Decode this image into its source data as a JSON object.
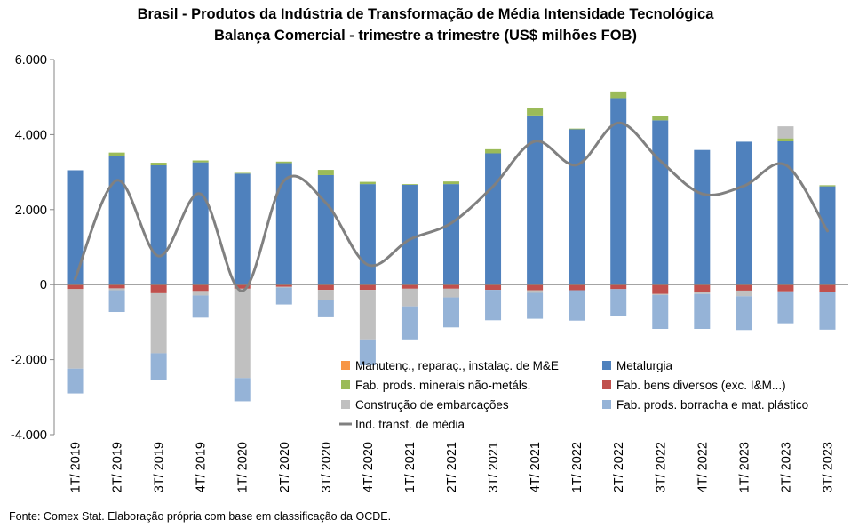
{
  "title_line1": "Brasil - Produtos da Indústria de Transformação de Média Intensidade Tecnológica",
  "title_line2": "Balança Comercial - trimestre a trimestre (US$ milhões FOB)",
  "source": "Fonte: Comex Stat. Elaboração própria com base em classificação da OCDE.",
  "chart_data": {
    "type": "bar",
    "stacked": true,
    "grid": false,
    "legend_position": "bottom-right, inside plot",
    "ylim": [
      -4000,
      6000
    ],
    "yticks": [
      6000,
      4000,
      2000,
      0,
      -2000,
      -4000
    ],
    "ytick_labels": [
      "6.000",
      "4.000",
      "2.000",
      "0",
      "-2.000",
      "-4.000"
    ],
    "categories": [
      "1T/ 2019",
      "2T/ 2019",
      "3T/ 2019",
      "4T/ 2019",
      "1T/ 2020",
      "2T/ 2020",
      "3T/ 2020",
      "4T/ 2020",
      "1T/ 2021",
      "2T/ 2021",
      "3T/ 2021",
      "4T/ 2021",
      "1T/ 2022",
      "2T/ 2022",
      "3T/ 2022",
      "4T/ 2022",
      "1T/ 2023",
      "2T/ 2023",
      "3T/ 2023"
    ],
    "series": [
      {
        "name": "Manutenç., reparaç., instalaç. de M&E",
        "kind": "bar",
        "color": "#F79646",
        "values": [
          0,
          0,
          0,
          0,
          0,
          0,
          0,
          0,
          0,
          0,
          0,
          0,
          0,
          0,
          0,
          0,
          0,
          0,
          0
        ]
      },
      {
        "name": "Metalurgia",
        "kind": "bar",
        "color": "#4F81BD",
        "values": [
          3050,
          3440,
          3180,
          3260,
          2960,
          3240,
          2920,
          2680,
          2660,
          2680,
          3500,
          4510,
          4140,
          4970,
          4380,
          3590,
          3810,
          3820,
          2620
        ]
      },
      {
        "name": "Fab. prods. minerais não-metáls.",
        "kind": "bar",
        "color": "#9BBB59",
        "values": [
          0,
          80,
          70,
          50,
          20,
          40,
          140,
          60,
          20,
          70,
          110,
          190,
          20,
          180,
          120,
          0,
          0,
          80,
          30
        ]
      },
      {
        "name": "Fab. bens diversos (exc. I&M...)",
        "kind": "bar",
        "color": "#C0504D",
        "values": [
          -120,
          -100,
          -230,
          -170,
          -110,
          -60,
          -140,
          -140,
          -110,
          -110,
          -140,
          -150,
          -150,
          -120,
          -250,
          -210,
          -160,
          -180,
          -200
        ]
      },
      {
        "name": "Construção de embarcações",
        "kind": "bar",
        "color": "#C0C0C0",
        "values": [
          -2120,
          -50,
          -1600,
          -120,
          -2380,
          -20,
          -260,
          -1320,
          -470,
          -230,
          0,
          -70,
          0,
          0,
          -30,
          -40,
          -150,
          320,
          0
        ]
      },
      {
        "name": "Fab. prods. borracha e mat. plástico",
        "kind": "bar",
        "color": "#95B3D7",
        "values": [
          -660,
          -580,
          -720,
          -590,
          -620,
          -450,
          -470,
          -690,
          -880,
          -800,
          -810,
          -690,
          -810,
          -710,
          -900,
          -930,
          -900,
          -850,
          -1000
        ]
      },
      {
        "name": "Ind. transf. de média",
        "kind": "line",
        "color": "#808080",
        "values": [
          150,
          2780,
          760,
          2420,
          -170,
          2770,
          2180,
          530,
          1200,
          1640,
          2620,
          3820,
          3190,
          4310,
          3300,
          2420,
          2630,
          3190,
          1430
        ]
      }
    ]
  }
}
